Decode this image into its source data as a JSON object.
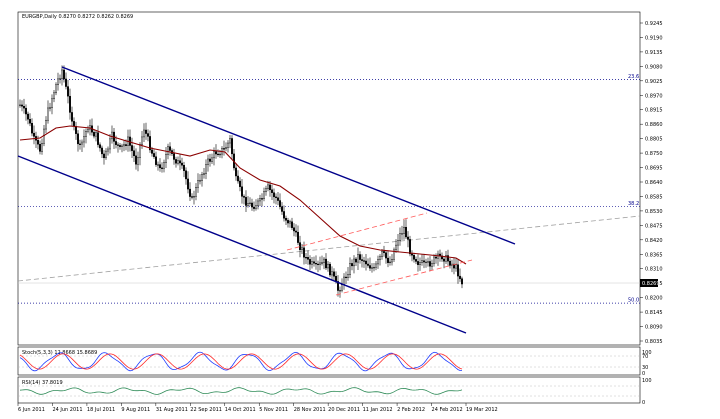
{
  "main_panel": {
    "header": "EURGBP,Daily  0.8270 0.8272 0.8262 0.8269",
    "current_price": "0.8269",
    "price_axis": [
      "0.9245",
      "0.9190",
      "0.9135",
      "0.9080",
      "0.9025",
      "0.8970",
      "0.8915",
      "0.8860",
      "0.8805",
      "0.8750",
      "0.8695",
      "0.8640",
      "0.8585",
      "0.8530",
      "0.8475",
      "0.8420",
      "0.8365",
      "0.8310",
      "0.8255",
      "0.8200",
      "0.8145",
      "0.8090",
      "0.8035"
    ],
    "fib_levels": [
      {
        "label": "23.6",
        "price": 0.903
      },
      {
        "label": "38.2",
        "price": 0.8547
      },
      {
        "label": "50.0",
        "price": 0.8179
      }
    ],
    "date_axis": [
      "6 Jun 2011",
      "24 Jun 2011",
      "18 Jul 2011",
      "9 Aug 2011",
      "31 Aug 2011",
      "22 Sep 2011",
      "14 Oct 2011",
      "5 Nov 2011",
      "28 Nov 2011",
      "20 Dec 2011",
      "11 Jan 2012",
      "2 Feb 2012",
      "24 Feb 2012",
      "19 Mar 2012"
    ]
  },
  "stoch_panel": {
    "header": "Stoch(5,3,3) 12.8668 15.8689",
    "axis_labels": [
      "100",
      "70",
      "30",
      "0"
    ]
  },
  "rsi_panel": {
    "header": "RSI(14) 37.8019",
    "axis_labels": [
      "100",
      "0"
    ]
  },
  "colors": {
    "channel": "#00008b",
    "moving_average": "#8b0000",
    "dashed_channel": "#ff5a5a",
    "trendline_dashed": "#a0a0a0",
    "fib_line": "#00008b",
    "stoch_main": "#1e3cff",
    "stoch_signal": "#ff2a2a",
    "rsi_line": "#2e8b57"
  }
}
